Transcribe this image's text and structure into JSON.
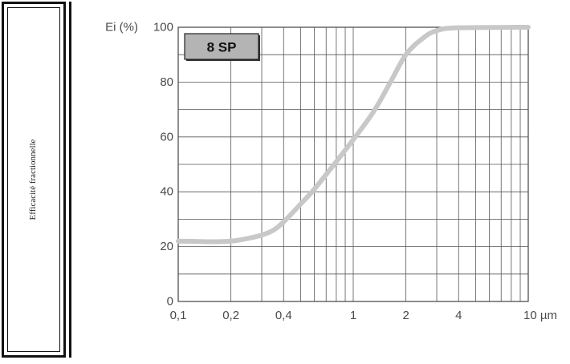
{
  "sidebar": {
    "label": "Efficacité fractionnelle"
  },
  "chart_data": {
    "type": "line",
    "title": "8 SP",
    "ylabel": "Ei (%)",
    "xlabel": "",
    "x_unit": "µm",
    "x_scale": "log",
    "xlim": [
      0.1,
      10
    ],
    "ylim": [
      0,
      100
    ],
    "x_ticks": [
      {
        "value": 0.1,
        "label": "0,1"
      },
      {
        "value": 0.2,
        "label": "0,2"
      },
      {
        "value": 0.4,
        "label": "0,4"
      },
      {
        "value": 1,
        "label": "1"
      },
      {
        "value": 2,
        "label": "2"
      },
      {
        "value": 4,
        "label": "4"
      },
      {
        "value": 10,
        "label": "10 µm"
      }
    ],
    "y_ticks": [
      {
        "value": 0,
        "label": "0"
      },
      {
        "value": 20,
        "label": "20"
      },
      {
        "value": 40,
        "label": "40"
      },
      {
        "value": 60,
        "label": "60"
      },
      {
        "value": 80,
        "label": "80"
      },
      {
        "value": 100,
        "label": "100"
      }
    ],
    "grid": true,
    "series": [
      {
        "color": "#c8c8c8",
        "points": [
          [
            0.1,
            22
          ],
          [
            0.15,
            21.8
          ],
          [
            0.2,
            22
          ],
          [
            0.25,
            23
          ],
          [
            0.3,
            24.2
          ],
          [
            0.35,
            26
          ],
          [
            0.4,
            29
          ],
          [
            0.5,
            35.5
          ],
          [
            0.6,
            41
          ],
          [
            0.8,
            51
          ],
          [
            1.0,
            59
          ],
          [
            1.3,
            69
          ],
          [
            1.6,
            79
          ],
          [
            2.0,
            90
          ],
          [
            2.5,
            96
          ],
          [
            3.0,
            98.8
          ],
          [
            4.0,
            99.8
          ],
          [
            10,
            100
          ]
        ]
      }
    ]
  }
}
